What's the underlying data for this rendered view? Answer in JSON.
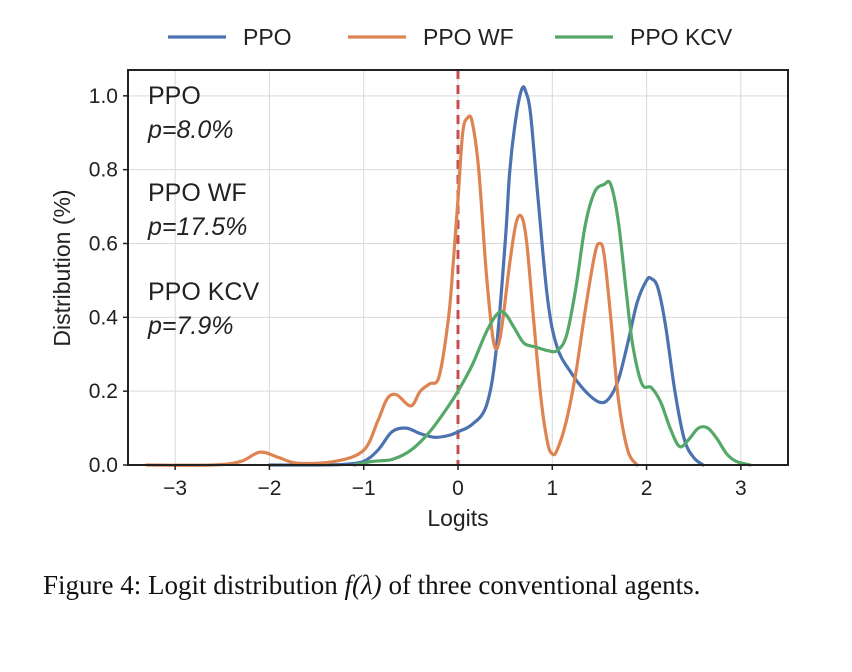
{
  "chart_data": {
    "type": "line",
    "xlabel": "Logits",
    "ylabel": "Distribution (%)",
    "xlim": [
      -3.5,
      3.5
    ],
    "ylim": [
      0.0,
      1.07
    ],
    "xticks": [
      -3,
      -2,
      -1,
      0,
      1,
      2,
      3
    ],
    "xtick_labels": [
      "−3",
      "−2",
      "−1",
      "0",
      "1",
      "2",
      "3"
    ],
    "yticks": [
      0.0,
      0.2,
      0.4,
      0.6,
      0.8,
      1.0
    ],
    "ytick_labels": [
      "0.0",
      "0.2",
      "0.4",
      "0.6",
      "0.8",
      "1.0"
    ],
    "grid": true,
    "legend_position": "top",
    "vline": {
      "x": 0,
      "color": "#c44e52",
      "style": "dashed"
    },
    "series": [
      {
        "name": "PPO",
        "color": "#4c72b0",
        "x": [
          -2.0,
          -1.5,
          -1.2,
          -1.0,
          -0.85,
          -0.7,
          -0.55,
          -0.4,
          -0.25,
          -0.1,
          0.0,
          0.15,
          0.3,
          0.4,
          0.5,
          0.55,
          0.62,
          0.68,
          0.72,
          0.77,
          0.85,
          0.95,
          1.05,
          1.2,
          1.35,
          1.5,
          1.6,
          1.7,
          1.8,
          1.9,
          2.0,
          2.05,
          2.12,
          2.2,
          2.3,
          2.4,
          2.5,
          2.6
        ],
        "values": [
          0.0,
          0.0,
          0.002,
          0.01,
          0.04,
          0.09,
          0.1,
          0.085,
          0.075,
          0.08,
          0.09,
          0.11,
          0.16,
          0.3,
          0.6,
          0.8,
          0.95,
          1.02,
          1.01,
          0.95,
          0.72,
          0.45,
          0.32,
          0.25,
          0.2,
          0.17,
          0.18,
          0.23,
          0.33,
          0.44,
          0.5,
          0.505,
          0.48,
          0.38,
          0.2,
          0.07,
          0.02,
          0.0
        ]
      },
      {
        "name": "PPO WF",
        "color": "#dd8452",
        "x": [
          -3.3,
          -2.6,
          -2.3,
          -2.1,
          -1.9,
          -1.7,
          -1.3,
          -1.0,
          -0.85,
          -0.75,
          -0.65,
          -0.5,
          -0.4,
          -0.3,
          -0.2,
          -0.1,
          -0.05,
          0.0,
          0.05,
          0.1,
          0.15,
          0.22,
          0.3,
          0.38,
          0.45,
          0.55,
          0.62,
          0.68,
          0.73,
          0.8,
          0.88,
          0.95,
          1.0,
          1.05,
          1.15,
          1.25,
          1.35,
          1.45,
          1.5,
          1.55,
          1.62,
          1.7,
          1.8,
          1.9
        ],
        "values": [
          0.0,
          0.0,
          0.01,
          0.035,
          0.02,
          0.005,
          0.01,
          0.04,
          0.12,
          0.18,
          0.19,
          0.16,
          0.2,
          0.22,
          0.24,
          0.4,
          0.55,
          0.72,
          0.9,
          0.94,
          0.93,
          0.8,
          0.52,
          0.33,
          0.35,
          0.55,
          0.66,
          0.67,
          0.6,
          0.4,
          0.18,
          0.06,
          0.03,
          0.04,
          0.12,
          0.25,
          0.42,
          0.57,
          0.6,
          0.57,
          0.4,
          0.18,
          0.04,
          0.0
        ]
      },
      {
        "name": "PPO KCV",
        "color": "#55a868",
        "x": [
          -1.1,
          -0.9,
          -0.7,
          -0.5,
          -0.3,
          -0.1,
          0.0,
          0.15,
          0.3,
          0.42,
          0.5,
          0.6,
          0.7,
          0.82,
          0.95,
          1.05,
          1.15,
          1.25,
          1.35,
          1.45,
          1.55,
          1.62,
          1.7,
          1.78,
          1.85,
          1.95,
          2.05,
          2.15,
          2.25,
          2.35,
          2.45,
          2.55,
          2.65,
          2.75,
          2.85,
          2.95,
          3.1
        ],
        "values": [
          0.0,
          0.01,
          0.015,
          0.04,
          0.09,
          0.16,
          0.2,
          0.27,
          0.36,
          0.41,
          0.41,
          0.37,
          0.33,
          0.32,
          0.31,
          0.31,
          0.35,
          0.48,
          0.65,
          0.74,
          0.76,
          0.76,
          0.66,
          0.48,
          0.33,
          0.22,
          0.21,
          0.17,
          0.1,
          0.05,
          0.07,
          0.1,
          0.1,
          0.07,
          0.03,
          0.01,
          0.0
        ]
      }
    ],
    "annotations": [
      {
        "name": "PPO",
        "p_text": "p=8.0%"
      },
      {
        "name": "PPO WF",
        "p_text": "p=17.5%"
      },
      {
        "name": "PPO KCV",
        "p_text": "p=7.9%"
      }
    ]
  },
  "caption": {
    "label": "Figure 4: Logit distribution",
    "function": "f(λ)",
    "rest": "of three conventional agents."
  }
}
